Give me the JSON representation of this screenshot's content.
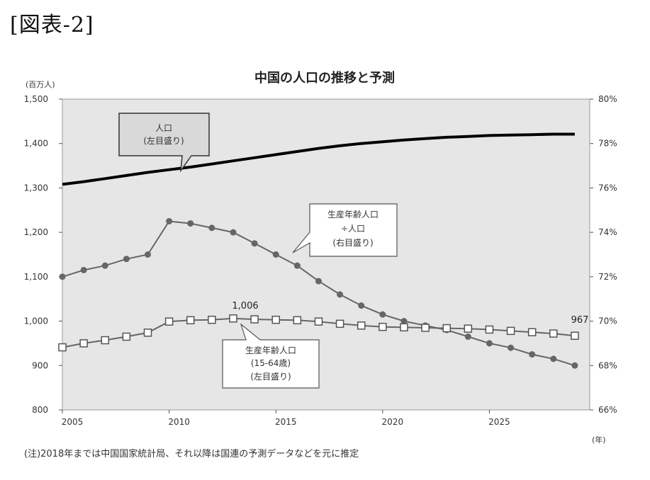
{
  "figure_label": "[図表-2]",
  "footnote": "(注)2018年までは中国国家統計局、それ以降は国連の予測データなどを元に推定",
  "chart_data": {
    "type": "line",
    "title": "中国の人口の推移と予測",
    "left_axis_unit": "(百万人)",
    "x_axis_unit": "(年)",
    "grid": false,
    "x": [
      2005,
      2006,
      2007,
      2008,
      2009,
      2010,
      2011,
      2012,
      2013,
      2014,
      2015,
      2016,
      2017,
      2018,
      2019,
      2020,
      2021,
      2022,
      2023,
      2024,
      2025,
      2026,
      2027,
      2028,
      2029
    ],
    "x_ticks": [
      2005,
      2010,
      2015,
      2020,
      2025
    ],
    "x_tick_labels": [
      "2005",
      "2010",
      "2015",
      "2020",
      "2025"
    ],
    "ylim_left": [
      800,
      1500
    ],
    "y_left_ticks": [
      800,
      900,
      1000,
      1100,
      1200,
      1300,
      1400,
      1500
    ],
    "y_left_tick_labels": [
      "800",
      "900",
      "1,000",
      "1,100",
      "1,200",
      "1,300",
      "1,400",
      "1,500"
    ],
    "ylim_right": [
      66,
      80
    ],
    "y_right_ticks": [
      66,
      68,
      70,
      72,
      74,
      76,
      78,
      80
    ],
    "y_right_tick_labels": [
      "66%",
      "68%",
      "70%",
      "72%",
      "74%",
      "76%",
      "78%",
      "80%"
    ],
    "series": [
      {
        "axis": "left",
        "style": "thick-line",
        "color": "#000000",
        "values": [
          1308,
          1314,
          1321,
          1328,
          1335,
          1341,
          1347,
          1354,
          1361,
          1368,
          1375,
          1382,
          1389,
          1395,
          1400,
          1404,
          1408,
          1411,
          1414,
          1416,
          1418,
          1419,
          1420,
          1421,
          1421
        ]
      },
      {
        "axis": "right",
        "style": "line-dot",
        "color": "#666666",
        "values": [
          72.0,
          72.3,
          72.5,
          72.8,
          73.0,
          74.5,
          74.4,
          74.2,
          74.0,
          73.5,
          73.0,
          72.5,
          71.8,
          71.2,
          70.7,
          70.3,
          70.0,
          69.8,
          69.6,
          69.3,
          69.0,
          68.8,
          68.5,
          68.3,
          68.0
        ]
      },
      {
        "axis": "left",
        "style": "line-square",
        "color": "#666666",
        "values": [
          941,
          950,
          957,
          965,
          974,
          999,
          1002,
          1003,
          1006,
          1004,
          1003,
          1002,
          999,
          994,
          990,
          987,
          986,
          985,
          984,
          983,
          981,
          978,
          975,
          972,
          967
        ]
      }
    ],
    "data_labels": [
      {
        "series": 2,
        "index": 8,
        "text": "1,006"
      },
      {
        "series": 2,
        "index": 24,
        "text": "967"
      }
    ],
    "annotations": [
      {
        "target": "series0",
        "lines": [
          "人口",
          "(左目盛り)"
        ]
      },
      {
        "target": "series1",
        "lines": [
          "生産年齢人口",
          "÷人口",
          "(右目盛り)"
        ]
      },
      {
        "target": "series2",
        "lines": [
          "生産年齢人口",
          "(15-64歳)",
          "(左目盛り)"
        ]
      }
    ]
  }
}
